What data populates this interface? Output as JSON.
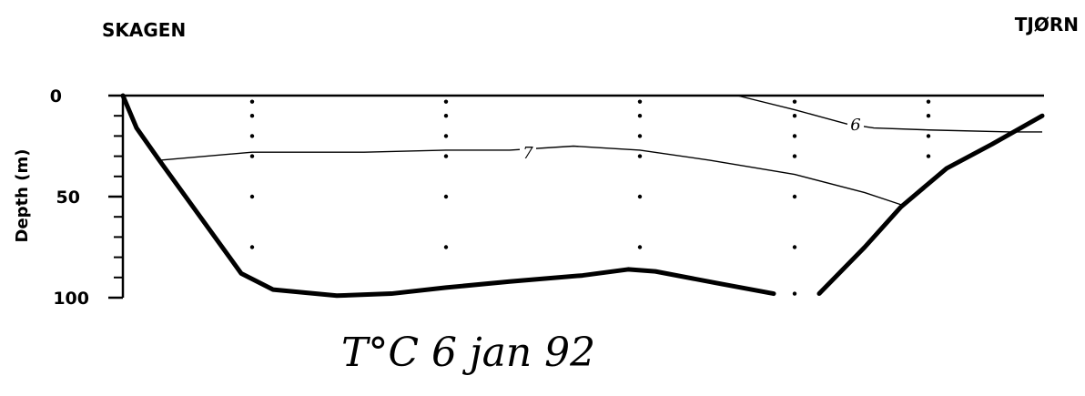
{
  "chart_data": {
    "type": "line",
    "title": "T°C   6 jan 92",
    "left_label": "SKAGEN",
    "right_label": "TJØRN",
    "ylabel": "Depth (m)",
    "ylim": [
      0,
      100
    ],
    "yticks": [
      "0",
      "50",
      "100"
    ],
    "grid": false,
    "stations_x": [
      277,
      490,
      703,
      873,
      1020
    ],
    "series": [
      {
        "name": "7",
        "kind": "isotherm",
        "label_at": [
          580,
          28
        ],
        "points": [
          [
            175,
            32
          ],
          [
            277,
            28
          ],
          [
            400,
            28
          ],
          [
            490,
            27
          ],
          [
            560,
            27
          ],
          [
            630,
            25
          ],
          [
            703,
            27
          ],
          [
            780,
            32
          ],
          [
            873,
            39
          ],
          [
            950,
            48
          ],
          [
            990,
            54
          ]
        ]
      },
      {
        "name": "6",
        "kind": "isotherm",
        "label_at": [
          940,
          14
        ],
        "points": [
          [
            810,
            0
          ],
          [
            873,
            7
          ],
          [
            930,
            14
          ],
          [
            960,
            16
          ],
          [
            1020,
            17
          ],
          [
            1110,
            18
          ],
          [
            1145,
            18
          ]
        ]
      }
    ],
    "bottom_profile": {
      "left": [
        [
          135,
          0
        ],
        [
          150,
          16
        ],
        [
          175,
          32
        ],
        [
          220,
          60
        ],
        [
          265,
          88
        ],
        [
          300,
          96
        ],
        [
          370,
          99
        ],
        [
          430,
          98
        ],
        [
          490,
          95
        ],
        [
          560,
          92
        ],
        [
          640,
          89
        ],
        [
          690,
          86
        ],
        [
          720,
          87
        ],
        [
          790,
          93
        ],
        [
          850,
          98
        ]
      ],
      "right": [
        [
          900,
          98
        ],
        [
          950,
          75
        ],
        [
          990,
          55
        ],
        [
          1040,
          36
        ],
        [
          1090,
          24
        ],
        [
          1145,
          10
        ]
      ]
    },
    "station_dots": [
      {
        "x": 277,
        "depths": [
          3,
          10,
          20,
          30,
          50,
          75
        ]
      },
      {
        "x": 490,
        "depths": [
          3,
          10,
          20,
          30,
          50,
          75
        ]
      },
      {
        "x": 703,
        "depths": [
          3,
          10,
          20,
          30,
          50,
          75
        ]
      },
      {
        "x": 873,
        "depths": [
          3,
          10,
          20,
          30,
          50,
          75,
          98
        ]
      },
      {
        "x": 1020,
        "depths": [
          3,
          10,
          20,
          30
        ]
      }
    ]
  }
}
